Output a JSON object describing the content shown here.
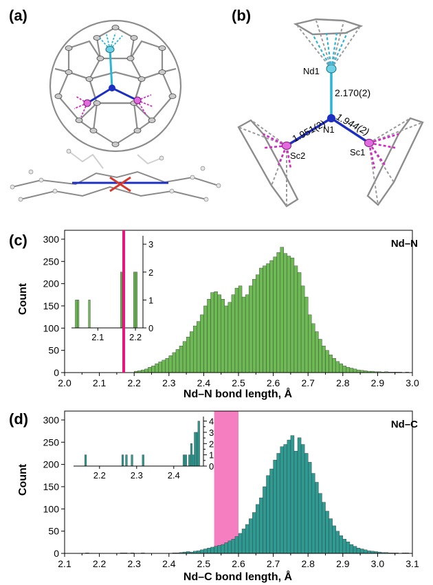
{
  "panels": {
    "a": "(a)",
    "b": "(b)",
    "c": "(c)",
    "d": "(d)"
  },
  "structure_b": {
    "atoms": {
      "nd": "Nd1",
      "n": "N1",
      "sc1": "Sc1",
      "sc2": "Sc2"
    },
    "bonds": {
      "nd_n": "2.170(2)",
      "sc2_n": "1.951(2)",
      "sc1_n": "1.944(2)"
    }
  },
  "colors": {
    "nd_bond": "#2bb5d4",
    "sc_bond": "#d726c8",
    "n_atom": "#1c2fc0",
    "cage": "#8a8a8a",
    "hist_c": "#6dba55",
    "hist_d": "#2e9a92",
    "marker_c": "#e6167c",
    "marker_d": "#f47ec0"
  },
  "chart_data": [
    {
      "type": "bar",
      "panel": "(c)",
      "title": "Nd–N",
      "xlabel": "Nd–N bond length, Å",
      "ylabel": "Count",
      "xlim": [
        2.0,
        3.0
      ],
      "ylim": [
        0,
        320
      ],
      "xticks": [
        "2.0",
        "2.1",
        "2.2",
        "2.3",
        "2.4",
        "2.5",
        "2.6",
        "2.7",
        "2.8",
        "2.9",
        "3.0"
      ],
      "yticks": [
        "0",
        "50",
        "100",
        "150",
        "200",
        "250",
        "300"
      ],
      "bin_width": 0.01,
      "bin_starts": [
        2.2,
        2.21,
        2.22,
        2.23,
        2.24,
        2.25,
        2.26,
        2.27,
        2.28,
        2.29,
        2.3,
        2.31,
        2.32,
        2.33,
        2.34,
        2.35,
        2.36,
        2.37,
        2.38,
        2.39,
        2.4,
        2.41,
        2.42,
        2.43,
        2.44,
        2.45,
        2.46,
        2.47,
        2.48,
        2.49,
        2.5,
        2.51,
        2.52,
        2.53,
        2.54,
        2.55,
        2.56,
        2.57,
        2.58,
        2.59,
        2.6,
        2.61,
        2.62,
        2.63,
        2.64,
        2.65,
        2.66,
        2.67,
        2.68,
        2.69,
        2.7,
        2.71,
        2.72,
        2.73,
        2.74,
        2.75,
        2.76,
        2.77,
        2.78,
        2.79,
        2.8,
        2.81,
        2.82,
        2.83,
        2.84,
        2.85,
        2.86,
        2.87,
        2.88,
        2.89,
        2.9,
        2.91,
        2.92,
        2.93,
        2.94,
        2.95,
        2.96,
        2.97,
        2.98
      ],
      "counts": [
        3,
        4,
        6,
        8,
        12,
        15,
        20,
        24,
        28,
        32,
        38,
        45,
        52,
        60,
        70,
        80,
        92,
        105,
        115,
        130,
        150,
        165,
        180,
        182,
        175,
        165,
        150,
        158,
        175,
        190,
        195,
        170,
        175,
        195,
        210,
        220,
        235,
        240,
        245,
        252,
        260,
        270,
        282,
        268,
        262,
        258,
        240,
        225,
        195,
        170,
        130,
        110,
        92,
        75,
        60,
        50,
        40,
        32,
        25,
        20,
        15,
        12,
        10,
        8,
        6,
        5,
        4,
        3,
        3,
        2,
        2,
        1,
        2,
        1,
        1,
        1,
        1,
        0,
        1
      ],
      "marker": {
        "x": 2.17
      },
      "inset": {
        "xlim": [
          2.03,
          2.22
        ],
        "ylim": [
          0,
          3.3
        ],
        "xticks": [
          "2.1",
          "2.2"
        ],
        "yticks": [
          "0",
          "1",
          "2",
          "3"
        ],
        "bin_width": 0.005,
        "bin_starts": [
          2.04,
          2.045,
          2.075,
          2.16,
          2.165,
          2.195,
          2.2
        ],
        "counts": [
          1,
          1,
          1,
          2,
          2,
          2,
          2
        ],
        "marker": {
          "x": 2.17
        }
      }
    },
    {
      "type": "bar",
      "panel": "(d)",
      "title": "Nd–C",
      "xlabel": "Nd–C bond length, Å",
      "ylabel": "Count",
      "xlim": [
        2.1,
        3.1
      ],
      "ylim": [
        0,
        320
      ],
      "xticks": [
        "2.1",
        "2.2",
        "2.3",
        "2.4",
        "2.5",
        "2.6",
        "2.7",
        "2.8",
        "2.9",
        "3.0",
        "3.1"
      ],
      "yticks": [
        "0",
        "50",
        "100",
        "150",
        "200",
        "250",
        "300"
      ],
      "bin_width": 0.01,
      "bin_starts": [
        2.16,
        2.26,
        2.27,
        2.29,
        2.32,
        2.41,
        2.42,
        2.43,
        2.44,
        2.45,
        2.46,
        2.47,
        2.48,
        2.49,
        2.5,
        2.51,
        2.52,
        2.53,
        2.54,
        2.55,
        2.56,
        2.57,
        2.58,
        2.59,
        2.6,
        2.61,
        2.62,
        2.63,
        2.64,
        2.65,
        2.66,
        2.67,
        2.68,
        2.69,
        2.7,
        2.71,
        2.72,
        2.73,
        2.74,
        2.75,
        2.76,
        2.77,
        2.78,
        2.79,
        2.8,
        2.81,
        2.82,
        2.83,
        2.84,
        2.85,
        2.86,
        2.87,
        2.88,
        2.89,
        2.9,
        2.91,
        2.92,
        2.93,
        2.94,
        2.95,
        2.96,
        2.97,
        2.98,
        2.99,
        3.0,
        3.01,
        3.02,
        3.03,
        3.04,
        3.05,
        3.06,
        3.07,
        3.08
      ],
      "counts": [
        1,
        1,
        1,
        1,
        1,
        1,
        1,
        2,
        3,
        4,
        3,
        5,
        6,
        8,
        10,
        12,
        14,
        16,
        18,
        20,
        24,
        28,
        32,
        38,
        45,
        55,
        65,
        78,
        92,
        110,
        125,
        150,
        175,
        190,
        210,
        225,
        240,
        245,
        255,
        265,
        230,
        260,
        245,
        225,
        205,
        180,
        160,
        135,
        115,
        95,
        78,
        62,
        50,
        40,
        32,
        26,
        20,
        16,
        12,
        10,
        8,
        6,
        5,
        4,
        3,
        2,
        2,
        1,
        1,
        1,
        0,
        1,
        1
      ],
      "band": {
        "x0": 2.53,
        "x1": 2.6
      },
      "inset": {
        "xlim": [
          2.13,
          2.48
        ],
        "ylim": [
          0,
          4.4
        ],
        "xticks": [
          "2.2",
          "2.3",
          "2.4"
        ],
        "yticks": [
          "0",
          "0.5",
          "1",
          "1.5",
          "2",
          "2.5",
          "3",
          "3.5",
          "4"
        ],
        "bin_width": 0.005,
        "bin_starts": [
          2.16,
          2.26,
          2.27,
          2.285,
          2.315,
          2.425,
          2.43,
          2.44,
          2.445,
          2.45,
          2.455,
          2.46,
          2.465
        ],
        "counts": [
          1,
          1,
          1,
          1,
          1,
          1,
          1,
          1,
          2,
          1,
          3,
          3,
          4
        ]
      }
    }
  ]
}
